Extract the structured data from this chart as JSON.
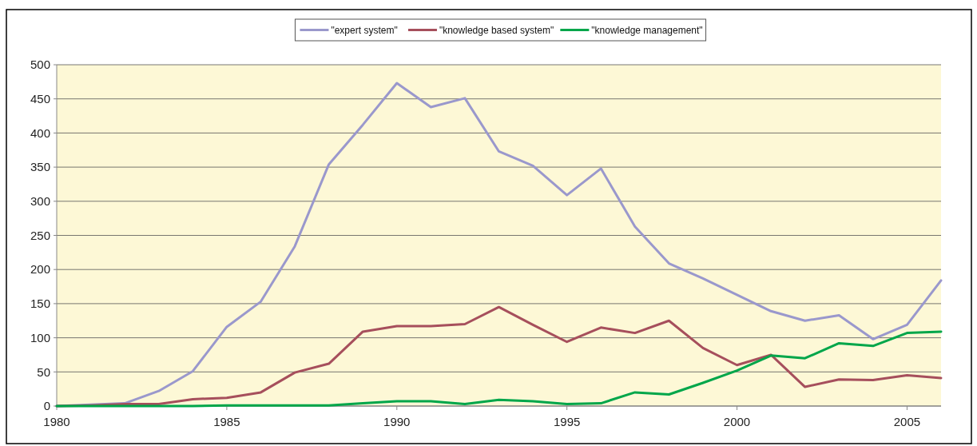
{
  "chart_data": {
    "type": "line",
    "x": [
      1980,
      1981,
      1982,
      1983,
      1984,
      1985,
      1986,
      1987,
      1988,
      1989,
      1990,
      1991,
      1992,
      1993,
      1994,
      1995,
      1996,
      1997,
      1998,
      1999,
      2000,
      2001,
      2002,
      2003,
      2004,
      2005,
      2006
    ],
    "series": [
      {
        "name": "\"expert system\"",
        "color": "#9a98cc",
        "values": [
          0,
          2,
          4,
          22,
          51,
          116,
          153,
          234,
          354,
          412,
          473,
          438,
          451,
          373,
          352,
          309,
          348,
          263,
          209,
          187,
          163,
          139,
          125,
          133,
          98,
          119,
          184
        ]
      },
      {
        "name": "\"knowledge based system\"",
        "color": "#a64f5c",
        "values": [
          0,
          1,
          3,
          3,
          10,
          12,
          20,
          49,
          62,
          109,
          117,
          117,
          120,
          145,
          119,
          94,
          115,
          107,
          125,
          85,
          60,
          75,
          28,
          39,
          38,
          45,
          41
        ]
      },
      {
        "name": "\"knowledge management\"",
        "color": "#00a64a",
        "values": [
          0,
          0,
          0,
          0,
          0,
          1,
          1,
          1,
          1,
          4,
          7,
          7,
          3,
          9,
          7,
          3,
          4,
          20,
          17,
          34,
          52,
          74,
          70,
          92,
          88,
          107,
          109
        ]
      }
    ],
    "xlim": [
      1980,
      2006
    ],
    "xticks": [
      1980,
      1985,
      1990,
      1995,
      2000,
      2005
    ],
    "ylim": [
      0,
      500
    ],
    "yticks": [
      0,
      50,
      100,
      150,
      200,
      250,
      300,
      350,
      400,
      450,
      500
    ],
    "grid": "y",
    "legend": "top",
    "marker": "none",
    "line_style": "solid"
  }
}
